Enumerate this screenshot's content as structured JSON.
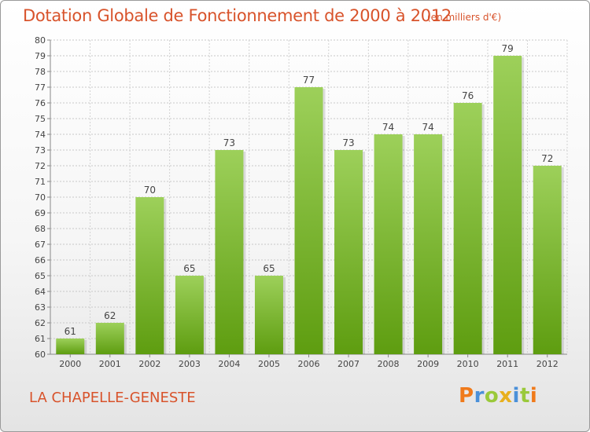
{
  "header": {
    "title": "Dotation Globale de Fonctionnement de 2000 à 2012",
    "subtitle": "(en milliers d'€)"
  },
  "footer": {
    "commune": "LA CHAPELLE-GENESTE",
    "logo_text": "Proxiti"
  },
  "colors": {
    "title": "#d8532b",
    "bar_top": "#9dd05a",
    "bar_bottom": "#5e9d10",
    "logo_letters": [
      "#f07a1a",
      "#4a90d9",
      "#9ac93a",
      "#e8b01e",
      "#4a90d9",
      "#9ac93a",
      "#f07a1a"
    ]
  },
  "chart_data": {
    "type": "bar",
    "categories": [
      "2000",
      "2001",
      "2002",
      "2003",
      "2004",
      "2005",
      "2006",
      "2007",
      "2008",
      "2009",
      "2010",
      "2011",
      "2012"
    ],
    "values": [
      61,
      62,
      70,
      65,
      73,
      65,
      77,
      73,
      74,
      74,
      76,
      79,
      72
    ],
    "ylim": [
      60,
      80
    ],
    "yticks": [
      60,
      61,
      62,
      63,
      64,
      65,
      66,
      67,
      68,
      69,
      70,
      71,
      72,
      73,
      74,
      75,
      76,
      77,
      78,
      79,
      80
    ],
    "grid": true,
    "data_labels": true
  }
}
